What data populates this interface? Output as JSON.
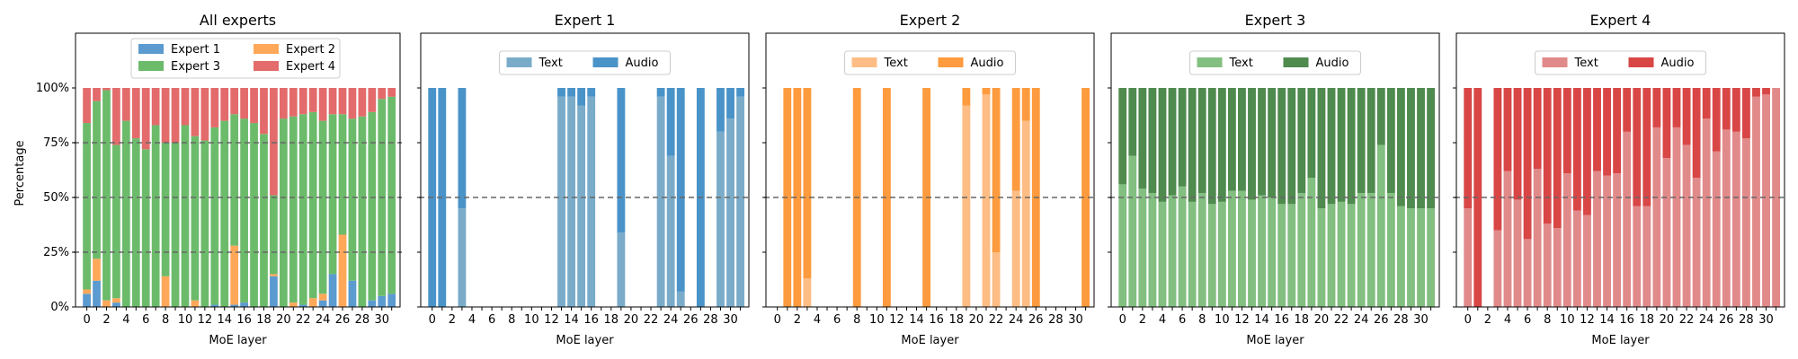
{
  "figure": {
    "ylabel": "Percentage",
    "xlabel": "MoE layer"
  },
  "colors": {
    "e1": "#5b9bd0",
    "e2": "#ffa85a",
    "e3": "#6cbb6b",
    "e4": "#e36b6b",
    "e1_text": "#7aacca",
    "e1_audio": "#4a93c9",
    "e2_text": "#fdbd84",
    "e2_audio": "#fd9b3e",
    "e3_text": "#82bf80",
    "e3_audio": "#4f8a4e",
    "e4_text": "#e18a8a",
    "e4_audio": "#d94646"
  },
  "chart_data": [
    {
      "type": "bar",
      "stacked": true,
      "title": "All experts",
      "xlabel": "MoE layer",
      "ylabel": "Percentage",
      "ylim": [
        0,
        125
      ],
      "yticks": [
        "0%",
        "25%",
        "50%",
        "75%",
        "100%"
      ],
      "xticks": [
        "0",
        "2",
        "4",
        "6",
        "8",
        "10",
        "12",
        "14",
        "16",
        "18",
        "20",
        "22",
        "24",
        "26",
        "28",
        "30"
      ],
      "hlines": [
        25,
        50,
        75
      ],
      "legend": {
        "placement": "upper-center",
        "columns": 2,
        "entries": [
          "Expert 1",
          "Expert 2",
          "Expert 3",
          "Expert 4"
        ]
      },
      "categories": [
        0,
        1,
        2,
        3,
        4,
        5,
        6,
        7,
        8,
        9,
        10,
        11,
        12,
        13,
        14,
        15,
        16,
        17,
        18,
        19,
        20,
        21,
        22,
        23,
        24,
        25,
        26,
        27,
        28,
        29,
        30,
        31
      ],
      "series": [
        {
          "name": "Expert 1",
          "values": [
            6,
            12,
            0,
            2,
            0,
            0,
            0,
            0,
            0,
            0,
            0,
            0,
            0,
            1,
            0,
            1,
            2,
            0,
            0,
            14,
            0,
            0,
            1,
            0,
            3,
            15,
            0,
            12,
            0,
            3,
            5,
            6
          ]
        },
        {
          "name": "Expert 2",
          "values": [
            2,
            10,
            3,
            2,
            0,
            0,
            0,
            0,
            14,
            0,
            0,
            3,
            0,
            0,
            0,
            27,
            0,
            0,
            0,
            1,
            0,
            2,
            0,
            4,
            3,
            0,
            33,
            0,
            0,
            0,
            0,
            0
          ]
        },
        {
          "name": "Expert 3",
          "values": [
            76,
            72,
            96,
            70,
            85,
            77,
            72,
            83,
            61,
            75,
            83,
            75,
            76,
            81,
            85,
            60,
            84,
            84,
            79,
            36,
            86,
            85,
            87,
            85,
            79,
            73,
            55,
            74,
            87,
            86,
            90,
            90
          ]
        },
        {
          "name": "Expert 4",
          "values": [
            16,
            6,
            1,
            26,
            15,
            23,
            28,
            17,
            25,
            25,
            17,
            22,
            24,
            18,
            15,
            12,
            14,
            16,
            21,
            49,
            14,
            13,
            12,
            11,
            15,
            12,
            12,
            14,
            13,
            11,
            5,
            4
          ]
        }
      ]
    },
    {
      "type": "bar",
      "stacked": true,
      "title": "Expert 1",
      "xlabel": "MoE layer",
      "ylim": [
        0,
        125
      ],
      "xticks": [
        "0",
        "2",
        "4",
        "6",
        "8",
        "10",
        "12",
        "14",
        "16",
        "18",
        "20",
        "22",
        "24",
        "26",
        "28",
        "30"
      ],
      "hlines": [
        50
      ],
      "legend": {
        "placement": "upper-center",
        "columns": 2,
        "entries": [
          "Text",
          "Audio"
        ]
      },
      "categories": [
        0,
        1,
        2,
        3,
        4,
        5,
        6,
        7,
        8,
        9,
        10,
        11,
        12,
        13,
        14,
        15,
        16,
        17,
        18,
        19,
        20,
        21,
        22,
        23,
        24,
        25,
        26,
        27,
        28,
        29,
        30,
        31
      ],
      "series": [
        {
          "name": "Text",
          "values": [
            0,
            0,
            0,
            45,
            0,
            0,
            0,
            0,
            0,
            0,
            0,
            0,
            0,
            96,
            96,
            92,
            96,
            0,
            0,
            34,
            0,
            0,
            0,
            96,
            69,
            7,
            0,
            0,
            0,
            80,
            86,
            96
          ]
        },
        {
          "name": "Audio",
          "values": [
            100,
            100,
            0,
            55,
            0,
            0,
            0,
            0,
            0,
            0,
            0,
            0,
            0,
            4,
            4,
            8,
            4,
            0,
            0,
            66,
            0,
            0,
            0,
            4,
            31,
            93,
            0,
            100,
            0,
            20,
            14,
            4
          ]
        }
      ]
    },
    {
      "type": "bar",
      "stacked": true,
      "title": "Expert 2",
      "xlabel": "MoE layer",
      "ylim": [
        0,
        125
      ],
      "xticks": [
        "0",
        "2",
        "4",
        "6",
        "8",
        "10",
        "12",
        "14",
        "16",
        "18",
        "20",
        "22",
        "24",
        "26",
        "28",
        "30"
      ],
      "hlines": [
        50
      ],
      "legend": {
        "placement": "upper-center",
        "columns": 2,
        "entries": [
          "Text",
          "Audio"
        ]
      },
      "categories": [
        0,
        1,
        2,
        3,
        4,
        5,
        6,
        7,
        8,
        9,
        10,
        11,
        12,
        13,
        14,
        15,
        16,
        17,
        18,
        19,
        20,
        21,
        22,
        23,
        24,
        25,
        26,
        27,
        28,
        29,
        30,
        31
      ],
      "series": [
        {
          "name": "Text",
          "values": [
            0,
            0,
            0,
            13,
            0,
            0,
            0,
            0,
            0,
            0,
            0,
            0,
            0,
            0,
            0,
            0,
            0,
            0,
            0,
            92,
            0,
            97,
            25,
            0,
            53,
            85,
            0,
            0,
            0,
            0,
            0,
            0
          ]
        },
        {
          "name": "Audio",
          "values": [
            0,
            100,
            100,
            87,
            0,
            0,
            0,
            0,
            100,
            0,
            0,
            100,
            0,
            0,
            0,
            100,
            0,
            0,
            0,
            8,
            0,
            3,
            75,
            0,
            47,
            15,
            100,
            0,
            0,
            0,
            0,
            100
          ]
        }
      ]
    },
    {
      "type": "bar",
      "stacked": true,
      "title": "Expert 3",
      "xlabel": "MoE layer",
      "ylim": [
        0,
        125
      ],
      "xticks": [
        "0",
        "2",
        "4",
        "6",
        "8",
        "10",
        "12",
        "14",
        "16",
        "18",
        "20",
        "22",
        "24",
        "26",
        "28",
        "30"
      ],
      "hlines": [
        50
      ],
      "legend": {
        "placement": "upper-center",
        "columns": 2,
        "entries": [
          "Text",
          "Audio"
        ]
      },
      "categories": [
        0,
        1,
        2,
        3,
        4,
        5,
        6,
        7,
        8,
        9,
        10,
        11,
        12,
        13,
        14,
        15,
        16,
        17,
        18,
        19,
        20,
        21,
        22,
        23,
        24,
        25,
        26,
        27,
        28,
        29,
        30,
        31
      ],
      "series": [
        {
          "name": "Text",
          "values": [
            56,
            69,
            54,
            52,
            48,
            51,
            55,
            48,
            52,
            47,
            48,
            53,
            53,
            49,
            51,
            50,
            47,
            47,
            52,
            59,
            45,
            47,
            48,
            47,
            52,
            52,
            74,
            52,
            46,
            45,
            45,
            45
          ]
        },
        {
          "name": "Audio",
          "values": [
            44,
            31,
            46,
            48,
            52,
            49,
            45,
            52,
            48,
            53,
            52,
            47,
            47,
            51,
            49,
            50,
            53,
            53,
            48,
            41,
            55,
            53,
            52,
            53,
            48,
            48,
            26,
            48,
            54,
            55,
            55,
            55
          ]
        }
      ]
    },
    {
      "type": "bar",
      "stacked": true,
      "title": "Expert 4",
      "xlabel": "MoE layer",
      "ylim": [
        0,
        125
      ],
      "xticks": [
        "0",
        "2",
        "4",
        "6",
        "8",
        "10",
        "12",
        "14",
        "16",
        "18",
        "20",
        "22",
        "24",
        "26",
        "28",
        "30"
      ],
      "hlines": [
        50
      ],
      "legend": {
        "placement": "upper-center",
        "columns": 2,
        "entries": [
          "Text",
          "Audio"
        ]
      },
      "categories": [
        0,
        1,
        2,
        3,
        4,
        5,
        6,
        7,
        8,
        9,
        10,
        11,
        12,
        13,
        14,
        15,
        16,
        17,
        18,
        19,
        20,
        21,
        22,
        23,
        24,
        25,
        26,
        27,
        28,
        29,
        30,
        31
      ],
      "series": [
        {
          "name": "Text",
          "values": [
            45,
            0,
            0,
            35,
            62,
            49,
            31,
            63,
            38,
            36,
            61,
            44,
            42,
            62,
            60,
            61,
            80,
            46,
            46,
            82,
            68,
            82,
            74,
            59,
            86,
            71,
            81,
            80,
            77,
            96,
            97,
            100
          ]
        },
        {
          "name": "Audio",
          "values": [
            55,
            100,
            0,
            65,
            38,
            51,
            69,
            37,
            62,
            64,
            39,
            56,
            58,
            38,
            40,
            39,
            20,
            54,
            54,
            18,
            32,
            18,
            26,
            41,
            14,
            29,
            19,
            20,
            23,
            4,
            3,
            0
          ]
        }
      ]
    }
  ]
}
